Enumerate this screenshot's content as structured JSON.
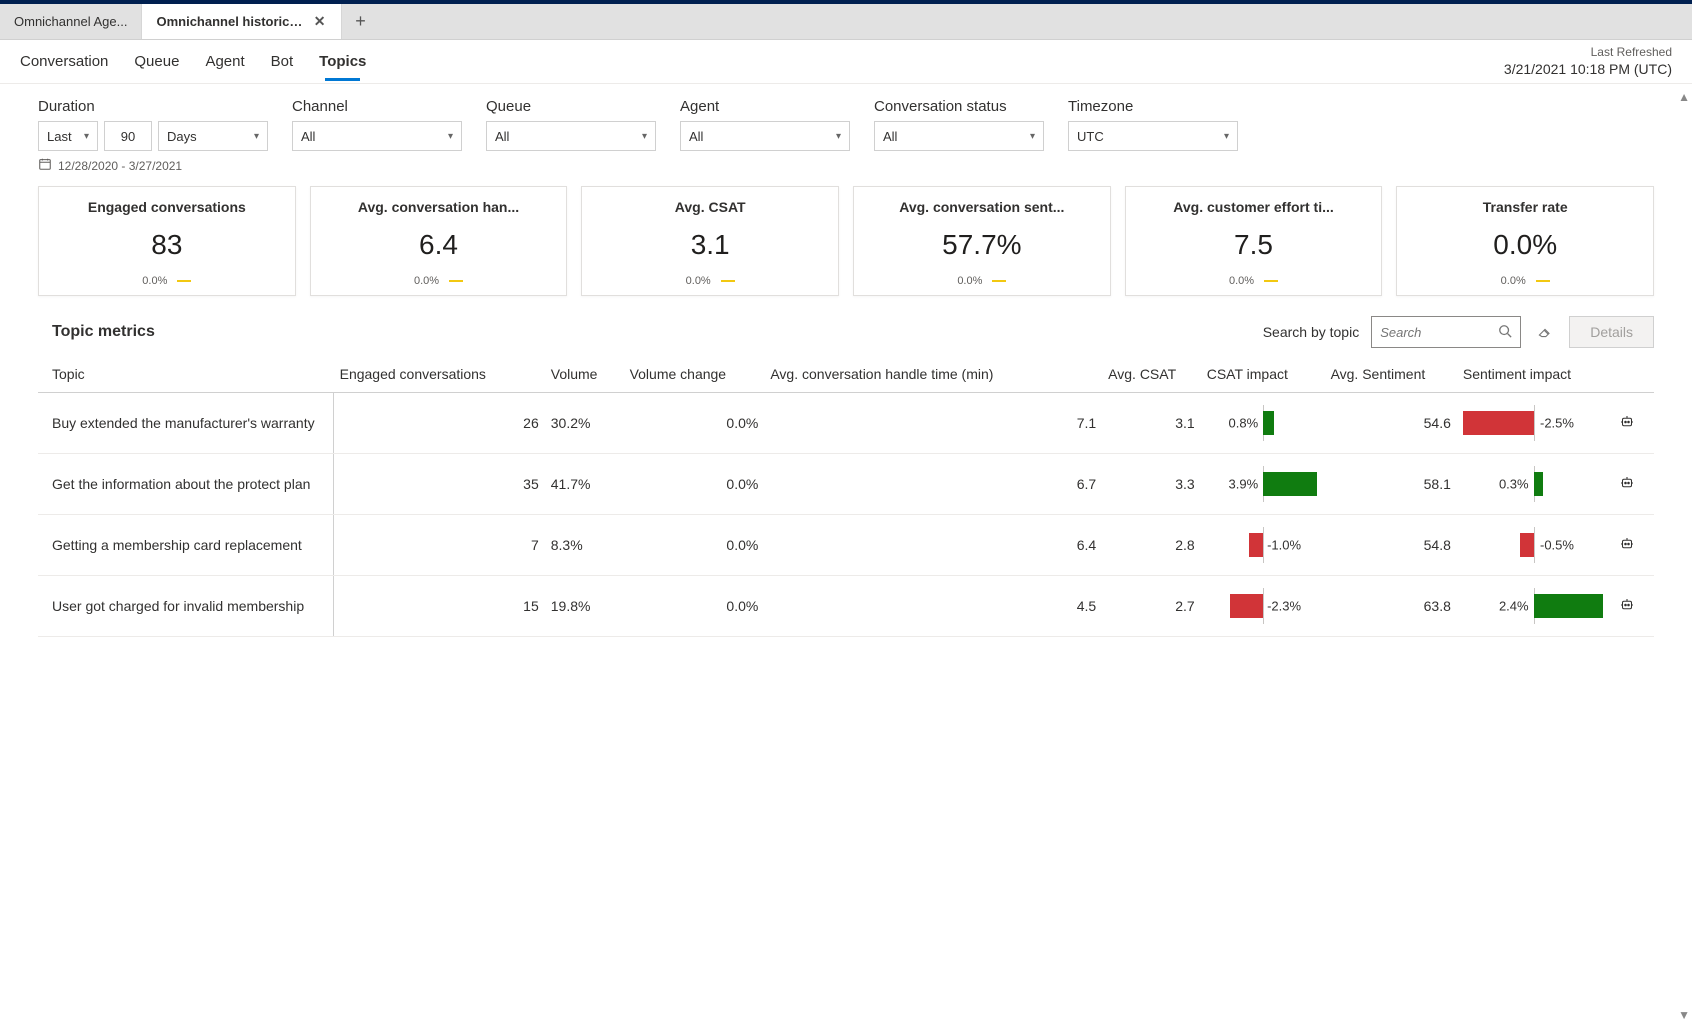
{
  "tabs": {
    "inactive_label": "Omnichannel Age...",
    "active_label": "Omnichannel historical an..."
  },
  "nav": {
    "items": [
      "Conversation",
      "Queue",
      "Agent",
      "Bot",
      "Topics"
    ],
    "active_index": 4
  },
  "last_refreshed": {
    "label": "Last Refreshed",
    "value": "3/21/2021 10:18 PM (UTC)"
  },
  "filters": {
    "duration": {
      "label": "Duration",
      "mode": "Last",
      "value": "90",
      "unit": "Days"
    },
    "channel": {
      "label": "Channel",
      "value": "All"
    },
    "queue": {
      "label": "Queue",
      "value": "All"
    },
    "agent": {
      "label": "Agent",
      "value": "All"
    },
    "status": {
      "label": "Conversation status",
      "value": "All"
    },
    "timezone": {
      "label": "Timezone",
      "value": "UTC"
    },
    "date_range": "12/28/2020 - 3/27/2021"
  },
  "kpis": [
    {
      "title": "Engaged conversations",
      "value": "83",
      "delta": "0.0%"
    },
    {
      "title": "Avg. conversation han...",
      "value": "6.4",
      "delta": "0.0%"
    },
    {
      "title": "Avg. CSAT",
      "value": "3.1",
      "delta": "0.0%"
    },
    {
      "title": "Avg. conversation sent...",
      "value": "57.7%",
      "delta": "0.0%"
    },
    {
      "title": "Avg. customer effort ti...",
      "value": "7.5",
      "delta": "0.0%"
    },
    {
      "title": "Transfer rate",
      "value": "0.0%",
      "delta": "0.0%"
    }
  ],
  "topic_section": {
    "title": "Topic metrics",
    "search_label": "Search by topic",
    "search_placeholder": "Search",
    "details_label": "Details"
  },
  "columns": {
    "topic": "Topic",
    "engaged": "Engaged conversations",
    "volume": "Volume",
    "volume_change": "Volume change",
    "handle": "Avg. conversation handle time (min)",
    "csat": "Avg. CSAT",
    "csat_impact": "CSAT impact",
    "sentiment": "Avg. Sentiment",
    "sentiment_impact": "Sentiment impact"
  },
  "impact_style": {
    "positive_color": "#107c10",
    "negative_color": "#d13438",
    "max_abs_csat": 4.0,
    "max_abs_sent": 2.5
  },
  "rows": [
    {
      "topic": "Buy extended the manufacturer's warranty",
      "engaged": "26",
      "volume": "30.2%",
      "volume_change": "0.0%",
      "handle": "7.1",
      "csat": "3.1",
      "csat_impact_val": 0.8,
      "csat_impact": "0.8%",
      "sentiment": "54.6",
      "sent_impact_val": -2.5,
      "sent_impact": "-2.5%"
    },
    {
      "topic": "Get the information about the protect plan",
      "engaged": "35",
      "volume": "41.7%",
      "volume_change": "0.0%",
      "handle": "6.7",
      "csat": "3.3",
      "csat_impact_val": 3.9,
      "csat_impact": "3.9%",
      "sentiment": "58.1",
      "sent_impact_val": 0.3,
      "sent_impact": "0.3%"
    },
    {
      "topic": "Getting a membership card replacement",
      "engaged": "7",
      "volume": "8.3%",
      "volume_change": "0.0%",
      "handle": "6.4",
      "csat": "2.8",
      "csat_impact_val": -1.0,
      "csat_impact": "-1.0%",
      "sentiment": "54.8",
      "sent_impact_val": -0.5,
      "sent_impact": "-0.5%"
    },
    {
      "topic": "User got charged for invalid membership",
      "engaged": "15",
      "volume": "19.8%",
      "volume_change": "0.0%",
      "handle": "4.5",
      "csat": "2.7",
      "csat_impact_val": -2.3,
      "csat_impact": "-2.3%",
      "sentiment": "63.8",
      "sent_impact_val": 2.4,
      "sent_impact": "2.4%"
    }
  ]
}
